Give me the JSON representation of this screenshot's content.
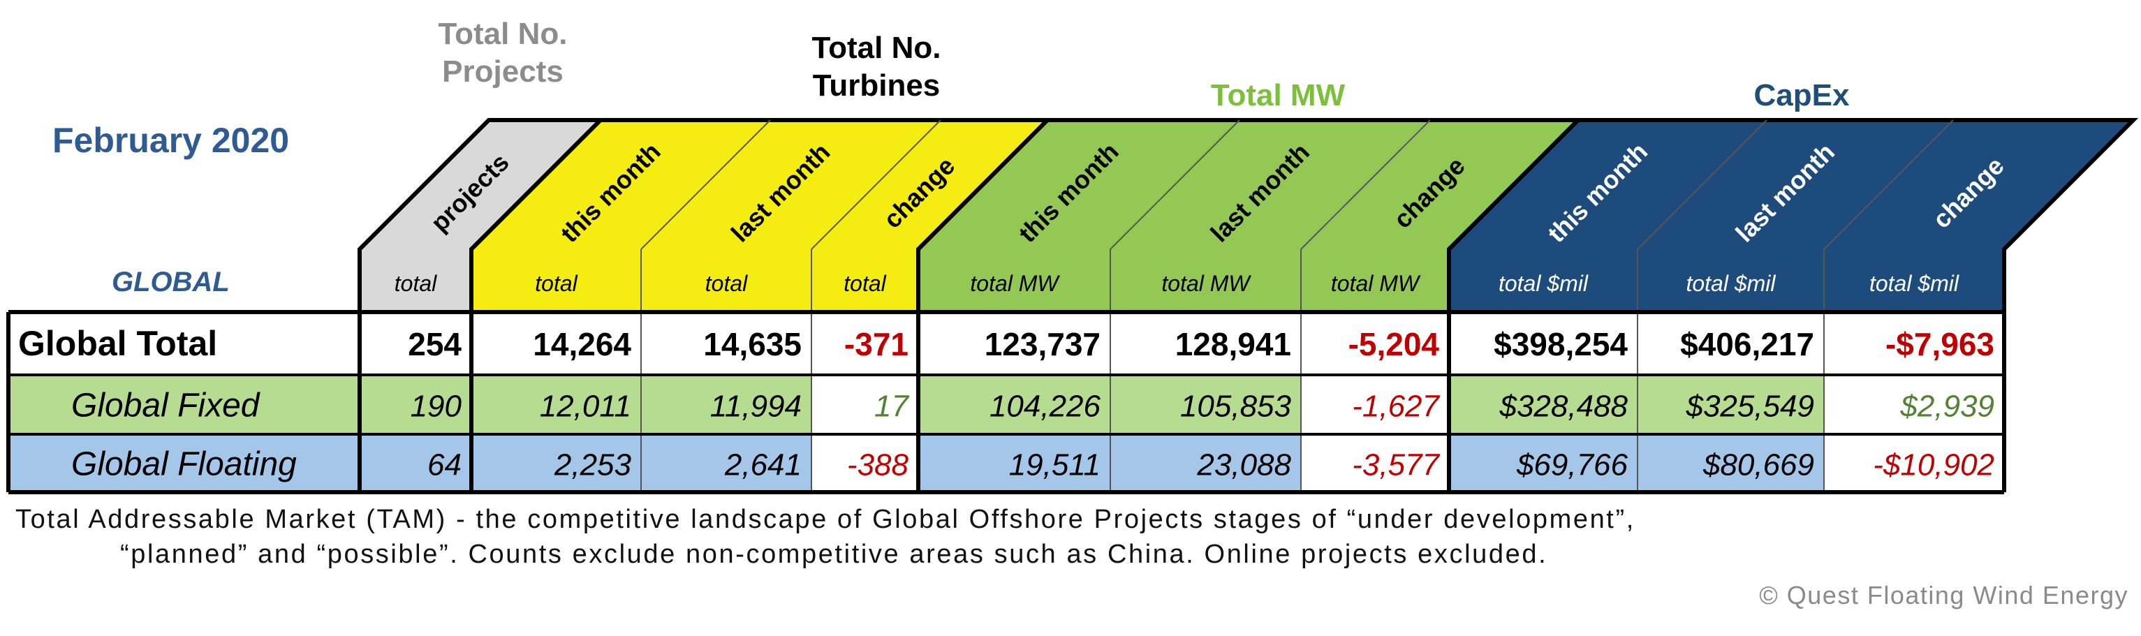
{
  "header": {
    "date": "February 2020",
    "region": "GLOBAL",
    "groups": [
      {
        "key": "projects",
        "title_lines": [
          "Total No.",
          "Projects"
        ],
        "color": "#8c8c8c"
      },
      {
        "key": "turbines",
        "title_lines": [
          "Total No.",
          "Turbines"
        ],
        "color": "#000000"
      },
      {
        "key": "mw",
        "title_lines": [
          "Total MW"
        ],
        "color": "#7cbf3a"
      },
      {
        "key": "capex",
        "title_lines": [
          "CapEx"
        ],
        "color": "#1f4e79"
      }
    ]
  },
  "colors": {
    "projects_header": "#d9d9d9",
    "turbines_header": "#f5ec12",
    "mw_header": "#92c853",
    "capex_header": "#1d4c7c",
    "fixed_row": "#b6dc92",
    "floating_row": "#a4c6e8",
    "negative": "#c00000",
    "positive": "#548235"
  },
  "chart_data": {
    "type": "table",
    "title": "February 2020",
    "region_label": "GLOBAL",
    "columns": [
      {
        "group": "projects",
        "header": "projects",
        "unit": "total"
      },
      {
        "group": "turbines",
        "header": "this month",
        "unit": "total"
      },
      {
        "group": "turbines",
        "header": "last month",
        "unit": "total"
      },
      {
        "group": "turbines",
        "header": "change",
        "unit": "total"
      },
      {
        "group": "mw",
        "header": "this month",
        "unit": "total MW"
      },
      {
        "group": "mw",
        "header": "last month",
        "unit": "total MW"
      },
      {
        "group": "mw",
        "header": "change",
        "unit": "total MW"
      },
      {
        "group": "capex",
        "header": "this month",
        "unit": "total $mil"
      },
      {
        "group": "capex",
        "header": "last month",
        "unit": "total $mil"
      },
      {
        "group": "capex",
        "header": "change",
        "unit": "total $mil"
      }
    ],
    "rows": [
      {
        "label": "Global Total",
        "cells": [
          "254",
          "14,264",
          "14,635",
          "-371",
          "123,737",
          "128,941",
          "-5,204",
          "$398,254",
          "$406,217",
          "-$7,963"
        ]
      },
      {
        "label": "Global Fixed",
        "cells": [
          "190",
          "12,011",
          "11,994",
          "17",
          "104,226",
          "105,853",
          "-1,627",
          "$328,488",
          "$325,549",
          "$2,939"
        ]
      },
      {
        "label": "Global Floating",
        "cells": [
          "64",
          "2,253",
          "2,641",
          "-388",
          "19,511",
          "23,088",
          "-3,577",
          "$69,766",
          "$80,669",
          "-$10,902"
        ]
      }
    ]
  },
  "footnote": {
    "line1": "Total Addressable Market (TAM) - the competitive landscape of Global Offshore Projects stages  of “under development”,",
    "line2": "“planned” and “possible”. Counts exclude non-competitive areas such as China. Online projects excluded."
  },
  "copyright": "© Quest Floating Wind Energy"
}
